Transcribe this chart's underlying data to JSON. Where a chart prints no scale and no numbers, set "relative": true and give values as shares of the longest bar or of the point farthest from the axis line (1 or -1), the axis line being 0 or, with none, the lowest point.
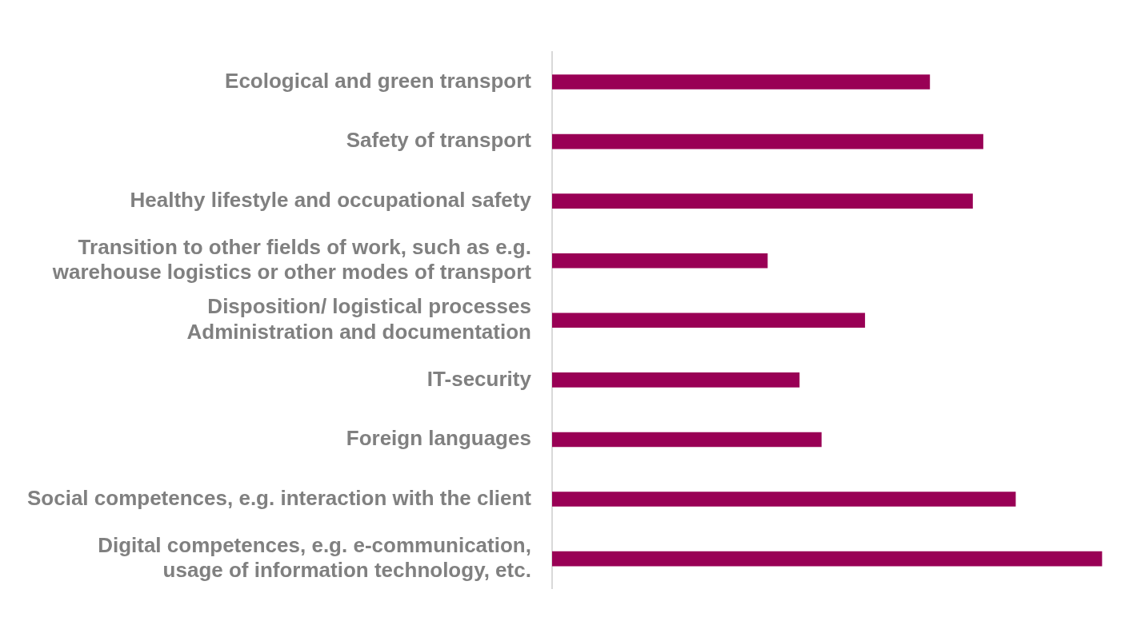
{
  "chart_data": {
    "type": "bar",
    "orientation": "horizontal",
    "relative": true,
    "legend": false,
    "categories": [
      "Ecological and green transport",
      "Safety of transport",
      "Healthy lifestyle and occupational safety",
      "Transition to other fields of work, such as e.g.\nwarehouse logistics or other modes of transport",
      "Disposition/ logistical processes\nAdministration and documentation",
      "IT-security",
      "Foreign languages",
      "Social competences, e.g. interaction with the client",
      "Digital competences, e.g. e-communication,\nusage of information technology, etc."
    ],
    "values": [
      0.687,
      0.784,
      0.765,
      0.392,
      0.569,
      0.45,
      0.49,
      0.843,
      1
    ],
    "color": "#990055"
  }
}
